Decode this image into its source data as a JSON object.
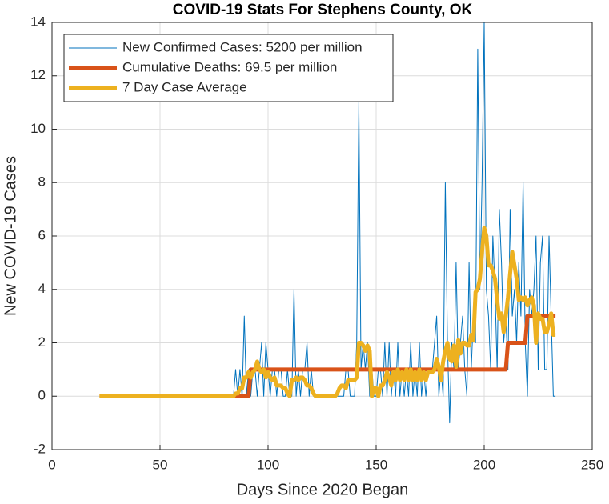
{
  "chart_data": {
    "type": "line",
    "title": "COVID-19 Stats For Stephens County, OK",
    "xlabel": "Days Since 2020 Began",
    "ylabel": "New COVID-19 Cases",
    "xlim": [
      0,
      250
    ],
    "xticks": [
      0,
      50,
      100,
      150,
      200,
      250
    ],
    "ylim": [
      -2,
      14
    ],
    "yticks": [
      -2,
      0,
      2,
      4,
      6,
      8,
      10,
      12,
      14
    ],
    "grid": true,
    "legend": "upper-left",
    "x": [
      22,
      23,
      24,
      25,
      26,
      27,
      28,
      29,
      30,
      31,
      32,
      33,
      34,
      35,
      36,
      37,
      38,
      39,
      40,
      41,
      42,
      43,
      44,
      45,
      46,
      47,
      48,
      49,
      50,
      51,
      52,
      53,
      54,
      55,
      56,
      57,
      58,
      59,
      60,
      61,
      62,
      63,
      64,
      65,
      66,
      67,
      68,
      69,
      70,
      71,
      72,
      73,
      74,
      75,
      76,
      77,
      78,
      79,
      80,
      81,
      82,
      83,
      84,
      85,
      86,
      87,
      88,
      89,
      90,
      91,
      92,
      93,
      94,
      95,
      96,
      97,
      98,
      99,
      100,
      101,
      102,
      103,
      104,
      105,
      106,
      107,
      108,
      109,
      110,
      111,
      112,
      113,
      114,
      115,
      116,
      117,
      118,
      119,
      120,
      121,
      122,
      123,
      124,
      125,
      126,
      127,
      128,
      129,
      130,
      131,
      132,
      133,
      134,
      135,
      136,
      137,
      138,
      139,
      140,
      141,
      142,
      143,
      144,
      145,
      146,
      147,
      148,
      149,
      150,
      151,
      152,
      153,
      154,
      155,
      156,
      157,
      158,
      159,
      160,
      161,
      162,
      163,
      164,
      165,
      166,
      167,
      168,
      169,
      170,
      171,
      172,
      173,
      174,
      175,
      176,
      177,
      178,
      179,
      180,
      181,
      182,
      183,
      184,
      185,
      186,
      187,
      188,
      189,
      190,
      191,
      192,
      193,
      194,
      195,
      196,
      197,
      198,
      199,
      200,
      201,
      202,
      203,
      204,
      205,
      206,
      207,
      208,
      209,
      210,
      211,
      212,
      213,
      214,
      215,
      216,
      217,
      218,
      219,
      220,
      221,
      222,
      223,
      224,
      225,
      226,
      227,
      228,
      229,
      230,
      231,
      232,
      233
    ],
    "series": [
      {
        "name": "New Confirmed Cases: 5200 per million",
        "color": "#0072bd",
        "width": 1,
        "values": [
          0,
          0,
          0,
          0,
          0,
          0,
          0,
          0,
          0,
          0,
          0,
          0,
          0,
          0,
          0,
          0,
          0,
          0,
          0,
          0,
          0,
          0,
          0,
          0,
          0,
          0,
          0,
          0,
          0,
          0,
          0,
          0,
          0,
          0,
          0,
          0,
          0,
          0,
          0,
          0,
          0,
          0,
          0,
          0,
          0,
          0,
          0,
          0,
          0,
          0,
          0,
          0,
          0,
          0,
          0,
          0,
          0,
          0,
          0,
          0,
          0,
          0,
          0,
          1,
          0,
          1,
          0,
          3,
          0,
          1,
          0,
          1,
          1,
          0,
          1,
          2,
          0,
          2,
          1,
          0,
          1,
          1,
          0,
          1,
          1,
          0,
          0,
          1,
          0,
          0,
          4,
          0,
          1,
          0,
          1,
          1,
          2,
          0,
          1,
          0,
          0,
          0,
          0,
          0,
          0,
          0,
          0,
          0,
          0,
          0,
          0,
          0,
          0,
          0,
          1,
          1,
          0,
          0,
          0,
          2,
          11,
          1,
          2,
          1,
          2,
          0,
          1,
          0,
          0,
          1,
          1,
          0,
          2,
          0,
          2,
          0,
          1,
          0,
          2,
          0,
          1,
          0,
          1,
          0,
          2,
          0,
          1,
          0,
          2,
          0,
          1,
          0,
          1,
          1,
          1,
          2,
          3,
          0,
          1,
          0,
          8,
          2,
          -1,
          2,
          1,
          5,
          1,
          2,
          3,
          1,
          0,
          5,
          1,
          3,
          2,
          13,
          4,
          8,
          14,
          4,
          3,
          1,
          6,
          4,
          1,
          7,
          5,
          2,
          3,
          1,
          7,
          3,
          4,
          2,
          5,
          3,
          8,
          2,
          0,
          4,
          3,
          4,
          6,
          1,
          5,
          6,
          1,
          1,
          6,
          3,
          0,
          0
        ]
      },
      {
        "name": "Cumulative Deaths: 69.5 per million",
        "color": "#d95319",
        "width": 5,
        "values": [
          0,
          0,
          0,
          0,
          0,
          0,
          0,
          0,
          0,
          0,
          0,
          0,
          0,
          0,
          0,
          0,
          0,
          0,
          0,
          0,
          0,
          0,
          0,
          0,
          0,
          0,
          0,
          0,
          0,
          0,
          0,
          0,
          0,
          0,
          0,
          0,
          0,
          0,
          0,
          0,
          0,
          0,
          0,
          0,
          0,
          0,
          0,
          0,
          0,
          0,
          0,
          0,
          0,
          0,
          0,
          0,
          0,
          0,
          0,
          0,
          0,
          0,
          0,
          0,
          0,
          0,
          0,
          0,
          0,
          0,
          1,
          1,
          1,
          1,
          1,
          1,
          1,
          1,
          1,
          1,
          1,
          1,
          1,
          1,
          1,
          1,
          1,
          1,
          1,
          1,
          1,
          1,
          1,
          1,
          1,
          1,
          1,
          1,
          1,
          1,
          1,
          1,
          1,
          1,
          1,
          1,
          1,
          1,
          1,
          1,
          1,
          1,
          1,
          1,
          1,
          1,
          1,
          1,
          1,
          1,
          1,
          1,
          1,
          1,
          1,
          1,
          1,
          1,
          1,
          1,
          1,
          1,
          1,
          1,
          1,
          1,
          1,
          1,
          1,
          1,
          1,
          1,
          1,
          1,
          1,
          1,
          1,
          1,
          1,
          1,
          1,
          1,
          1,
          1,
          1,
          1,
          1,
          1,
          1,
          1,
          1,
          1,
          1,
          1,
          1,
          1,
          1,
          1,
          1,
          1,
          1,
          1,
          1,
          1,
          1,
          1,
          1,
          1,
          1,
          1,
          1,
          1,
          1,
          1,
          1,
          1,
          1,
          1,
          1,
          2,
          2,
          2,
          2,
          2,
          2,
          2,
          2,
          2,
          3,
          3,
          3,
          3,
          3,
          3,
          3,
          3,
          3,
          3,
          3,
          3,
          3,
          3
        ]
      },
      {
        "name": "7 Day Case Average",
        "color": "#edb120",
        "width": 5,
        "values": [
          0,
          0,
          0,
          0,
          0,
          0,
          0,
          0,
          0,
          0,
          0,
          0,
          0,
          0,
          0,
          0,
          0,
          0,
          0,
          0,
          0,
          0,
          0,
          0,
          0,
          0,
          0,
          0,
          0,
          0,
          0,
          0,
          0,
          0,
          0,
          0,
          0,
          0,
          0,
          0,
          0,
          0,
          0,
          0,
          0,
          0,
          0,
          0,
          0,
          0,
          0,
          0,
          0,
          0,
          0,
          0,
          0,
          0,
          0,
          0,
          0,
          0,
          0,
          0.1,
          0.1,
          0.3,
          0.3,
          0.7,
          0.7,
          0.9,
          0.7,
          0.9,
          1.0,
          1.3,
          1.0,
          0.9,
          1.0,
          0.7,
          0.9,
          0.7,
          0.6,
          0.7,
          0.4,
          0.4,
          0.4,
          0.3,
          0.3,
          0.1,
          0.0,
          0.6,
          0.6,
          0.7,
          0.6,
          0.7,
          0.7,
          0.6,
          0.4,
          0.4,
          0.3,
          0.1,
          0.0,
          0.0,
          0.0,
          0.0,
          0.0,
          0.0,
          0.0,
          0.0,
          0.0,
          0.0,
          0.1,
          0.3,
          0.4,
          0.4,
          0.3,
          0.6,
          0.6,
          0.6,
          0.6,
          0.7,
          2.0,
          2.0,
          1.9,
          1.7,
          1.9,
          1.7,
          0.0,
          0.3,
          0.3,
          0.0,
          0.4,
          0.4,
          0.6,
          0.9,
          0.7,
          0.4,
          0.9,
          0.6,
          1.0,
          0.6,
          0.9,
          0.6,
          1.0,
          0.6,
          1.0,
          0.6,
          0.9,
          0.6,
          1.0,
          0.6,
          0.9,
          0.6,
          0.9,
          0.9,
          0.9,
          1.0,
          1.4,
          1.1,
          0.6,
          1.3,
          1.7,
          2.0,
          1.4,
          1.3,
          1.9,
          1.1,
          2.1,
          1.6,
          2.0,
          2.0,
          1.9,
          1.9,
          2.3,
          2.1,
          3.9,
          4.0,
          4.4,
          5.4,
          6.3,
          6.0,
          4.9,
          4.9,
          4.7,
          4.4,
          3.6,
          2.9,
          3.1,
          2.4,
          3.0,
          3.7,
          4.6,
          5.4,
          4.9,
          4.4,
          3.6,
          3.7,
          3.6,
          3.7,
          3.4,
          3.6,
          3.7,
          3.4,
          2.0,
          3.1,
          2.9,
          2.9,
          2.4,
          2.4,
          2.7,
          3.1,
          2.3,
          2.3
        ]
      }
    ]
  }
}
